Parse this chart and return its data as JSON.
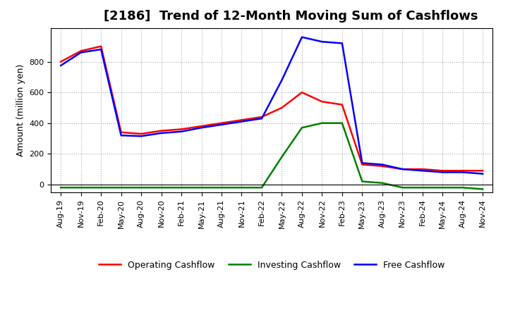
{
  "title": "[2186]  Trend of 12-Month Moving Sum of Cashflows",
  "ylabel": "Amount (million yen)",
  "x_labels": [
    "Aug-19",
    "Nov-19",
    "Feb-20",
    "May-20",
    "Aug-20",
    "Nov-20",
    "Feb-21",
    "May-21",
    "Aug-21",
    "Nov-21",
    "Feb-22",
    "May-22",
    "Aug-22",
    "Nov-22",
    "Feb-23",
    "May-23",
    "Aug-23",
    "Nov-23",
    "Feb-24",
    "May-24",
    "Aug-24",
    "Nov-24"
  ],
  "operating": [
    800,
    870,
    900,
    340,
    330,
    350,
    360,
    380,
    400,
    420,
    440,
    500,
    600,
    540,
    520,
    130,
    120,
    100,
    100,
    90,
    90,
    90
  ],
  "investing": [
    -20,
    -20,
    -20,
    -20,
    -20,
    -20,
    -20,
    -20,
    -20,
    -20,
    -20,
    180,
    370,
    400,
    400,
    20,
    10,
    -20,
    -20,
    -20,
    -20,
    -30
  ],
  "free": [
    775,
    860,
    880,
    320,
    315,
    335,
    345,
    370,
    390,
    410,
    430,
    680,
    960,
    930,
    920,
    140,
    130,
    100,
    90,
    80,
    80,
    70
  ],
  "operating_color": "#ff0000",
  "investing_color": "#008000",
  "free_color": "#0000ff",
  "ylim_min": -50,
  "ylim_max": 1020,
  "yticks": [
    0,
    200,
    400,
    600,
    800
  ],
  "background_color": "#ffffff",
  "grid_color": "#aaaaaa",
  "title_fontsize": 13,
  "ylabel_fontsize": 9,
  "tick_fontsize": 8,
  "legend_fontsize": 9
}
